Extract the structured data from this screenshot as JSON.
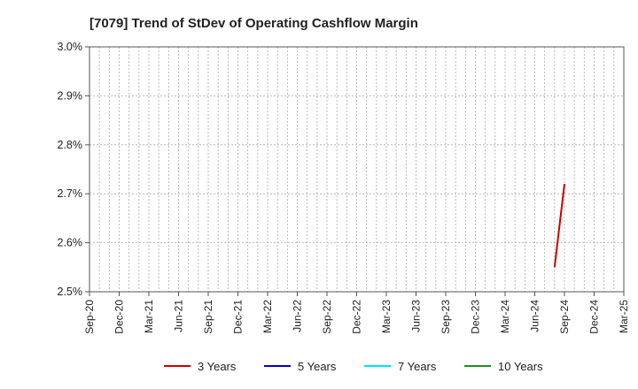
{
  "chart_data": {
    "type": "line",
    "title": "[7079]  Trend of StDev of Operating Cashflow Margin",
    "xlabel": "",
    "ylabel": "",
    "x_ticks": [
      "Sep-20",
      "Dec-20",
      "Mar-21",
      "Jun-21",
      "Sep-21",
      "Dec-21",
      "Mar-22",
      "Jun-22",
      "Sep-22",
      "Dec-22",
      "Mar-23",
      "Jun-23",
      "Sep-23",
      "Dec-23",
      "Mar-24",
      "Jun-24",
      "Sep-24",
      "Dec-24",
      "Mar-25"
    ],
    "y_ticks": [
      "2.5%",
      "2.6%",
      "2.7%",
      "2.8%",
      "2.9%",
      "3.0%"
    ],
    "ylim": [
      2.5,
      3.0
    ],
    "grid": true,
    "legend_position": "bottom",
    "series": [
      {
        "name": "3 Years",
        "color": "#cc0000",
        "points": [
          {
            "x": "Aug-24",
            "y": 2.55
          },
          {
            "x": "Sep-24",
            "y": 2.72
          }
        ]
      },
      {
        "name": "5 Years",
        "color": "#0000cc",
        "points": []
      },
      {
        "name": "7 Years",
        "color": "#00e5ee",
        "points": []
      },
      {
        "name": "10 Years",
        "color": "#228b22",
        "points": []
      }
    ]
  }
}
